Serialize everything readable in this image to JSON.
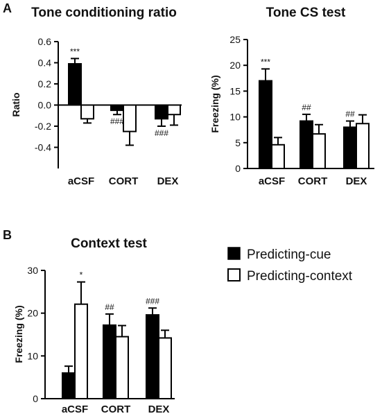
{
  "panel_labels": {
    "a": "A",
    "b": "B"
  },
  "legend": {
    "items": [
      {
        "label": "Predicting-cue",
        "color": "#000000"
      },
      {
        "label": "Predicting-context",
        "color": "#ffffff"
      }
    ]
  },
  "chart_data": [
    {
      "id": "ratio",
      "type": "bar",
      "title": "Tone conditioning ratio",
      "ylabel": "Ratio",
      "xlabel": "",
      "ylim": [
        -0.6,
        0.6
      ],
      "yticks": [
        0.6,
        0.4,
        0.2,
        0.0,
        -0.2,
        -0.4
      ],
      "ytick_labels": [
        "0.6",
        "0.4",
        "0.2",
        "0.0",
        "-0.2",
        "-0.4"
      ],
      "categories": [
        "aCSF",
        "CORT",
        "DEX"
      ],
      "series": [
        {
          "name": "Predicting-cue",
          "values": [
            0.39,
            -0.05,
            -0.13
          ],
          "errors": [
            0.05,
            0.04,
            0.07
          ],
          "annotations": [
            {
              "text": "***",
              "pos": "above"
            },
            {
              "text": "###",
              "pos": "below"
            },
            {
              "text": "###",
              "pos": "below"
            }
          ]
        },
        {
          "name": "Predicting-context",
          "values": [
            -0.13,
            -0.25,
            -0.09
          ],
          "errors": [
            0.04,
            0.13,
            0.1
          ],
          "annotations": [
            null,
            null,
            null
          ]
        }
      ]
    },
    {
      "id": "tonecs",
      "type": "bar",
      "title": "Tone CS test",
      "ylabel": "Freezing (%)",
      "xlabel": "",
      "ylim": [
        0,
        25
      ],
      "yticks": [
        0,
        5,
        10,
        15,
        20,
        25
      ],
      "ytick_labels": [
        "0",
        "5",
        "10",
        "15",
        "20",
        "25"
      ],
      "categories": [
        "aCSF",
        "CORT",
        "DEX"
      ],
      "series": [
        {
          "name": "Predicting-cue",
          "values": [
            17.0,
            9.2,
            8.0
          ],
          "errors": [
            2.3,
            1.3,
            1.2
          ],
          "annotations": [
            {
              "text": "***",
              "pos": "above"
            },
            {
              "text": "##",
              "pos": "above"
            },
            {
              "text": "##",
              "pos": "above"
            }
          ]
        },
        {
          "name": "Predicting-context",
          "values": [
            4.6,
            6.7,
            8.7
          ],
          "errors": [
            1.4,
            1.8,
            1.7
          ],
          "annotations": [
            null,
            null,
            null
          ]
        }
      ]
    },
    {
      "id": "context",
      "type": "bar",
      "title": "Context test",
      "ylabel": "Freezing (%)",
      "xlabel": "",
      "ylim": [
        0,
        30
      ],
      "yticks": [
        0,
        10,
        20,
        30
      ],
      "ytick_labels": [
        "0",
        "10",
        "20",
        "30"
      ],
      "categories": [
        "aCSF",
        "CORT",
        "DEX"
      ],
      "series": [
        {
          "name": "Predicting-cue",
          "values": [
            6.0,
            17.2,
            19.6
          ],
          "errors": [
            1.6,
            2.6,
            1.6
          ],
          "annotations": [
            null,
            {
              "text": "##",
              "pos": "above"
            },
            {
              "text": "###",
              "pos": "above"
            }
          ]
        },
        {
          "name": "Predicting-context",
          "values": [
            22.1,
            14.5,
            14.2
          ],
          "errors": [
            5.2,
            2.6,
            1.8
          ],
          "annotations": [
            {
              "text": "*",
              "pos": "above"
            },
            null,
            null
          ]
        }
      ]
    }
  ]
}
